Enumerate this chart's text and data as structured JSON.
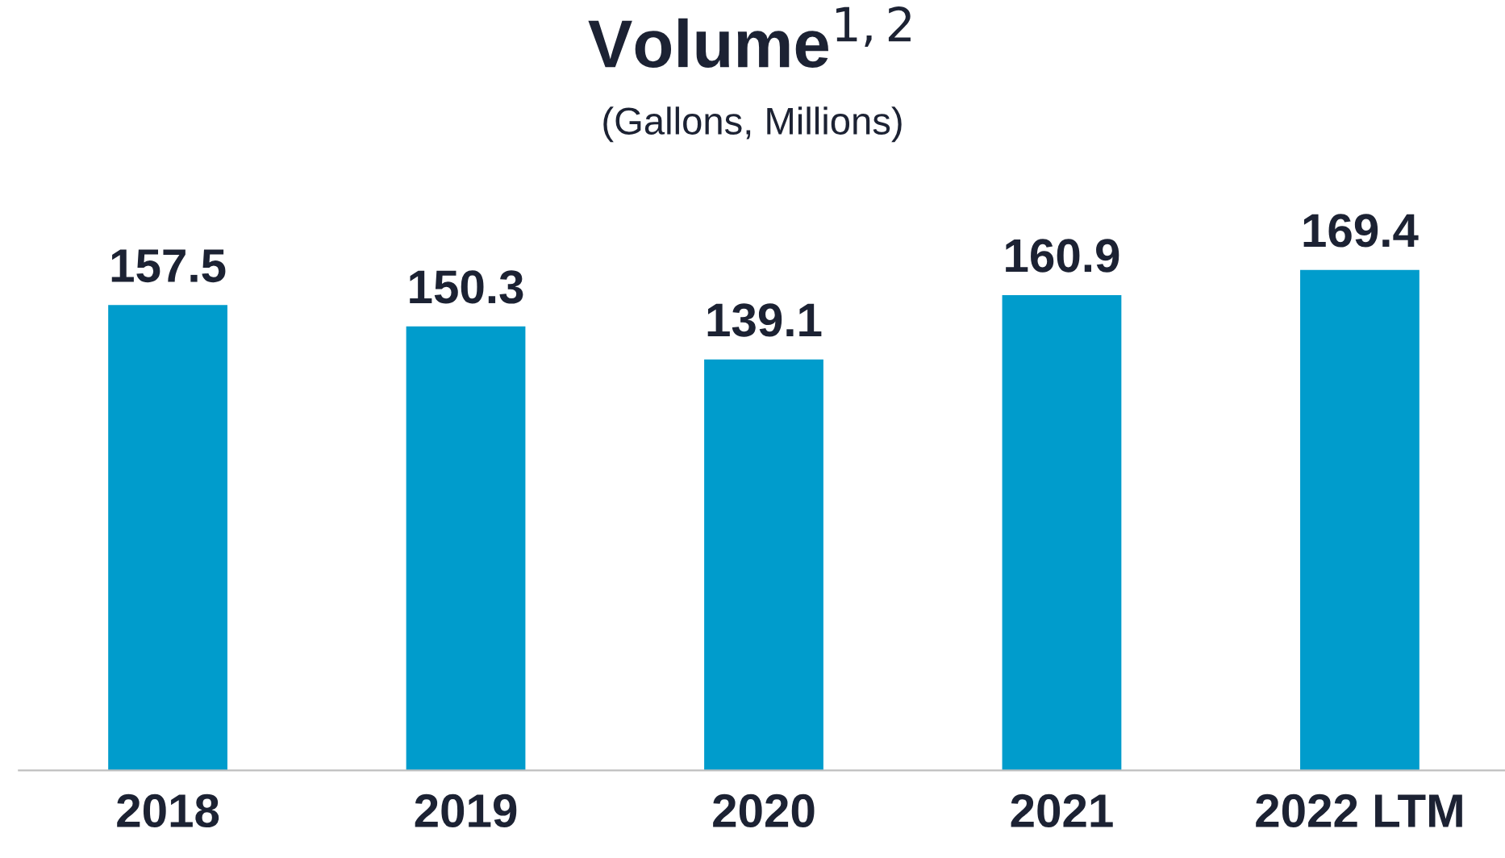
{
  "chart_data": {
    "type": "bar",
    "title": "Volume$^{1,2}$",
    "subtitle": "(Gallons, Millions)",
    "categories": [
      "2018",
      "2019",
      "2020",
      "2021",
      "2022 LTM"
    ],
    "values": [
      157.5,
      150.3,
      139.1,
      160.9,
      169.4
    ],
    "color": "#009ccc",
    "data_labels": true,
    "grid": false,
    "legend": false
  }
}
